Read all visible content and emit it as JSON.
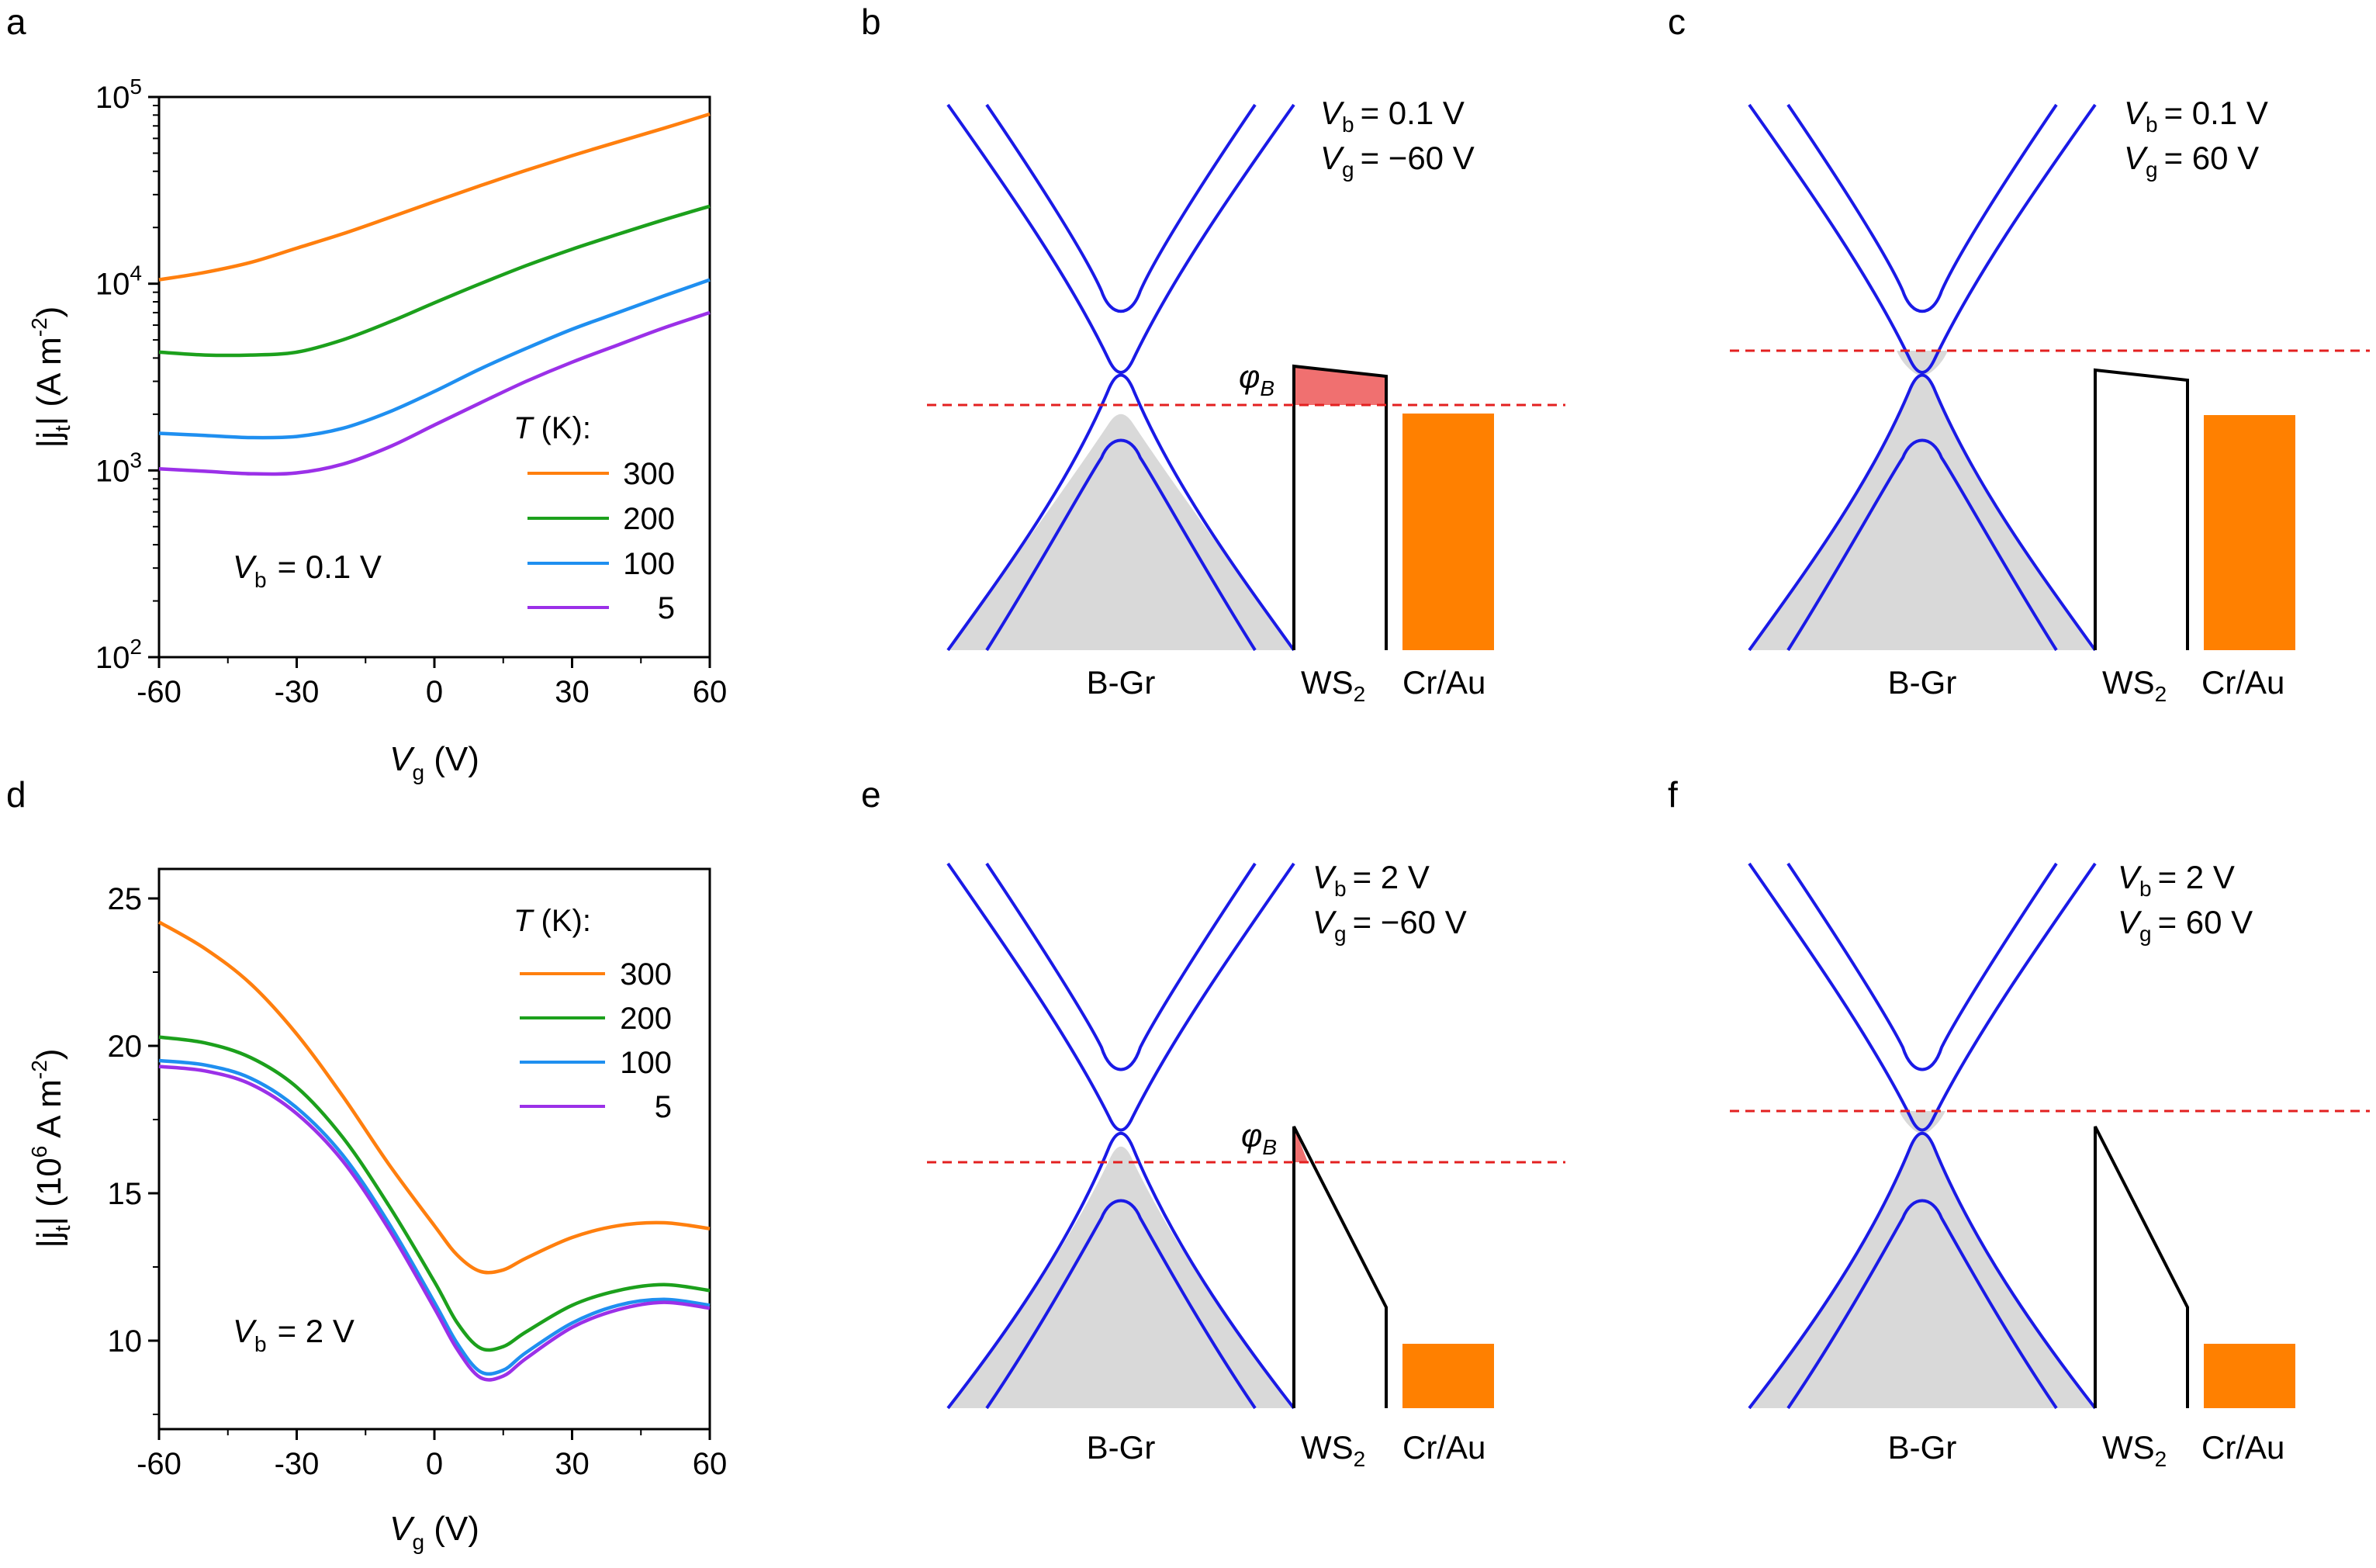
{
  "colors": {
    "T300": "#ff7f0e",
    "T200": "#1ca01c",
    "T100": "#1f8ff0",
    "T5": "#9b30e8",
    "band": "#1a1ae6",
    "fermi": "#e32020",
    "barrier_fill": "#f07070",
    "metal": "#ff8000",
    "filled": "#d9d9d9"
  },
  "panels": {
    "a": {
      "label": "a"
    },
    "b": {
      "label": "b",
      "vb_label": "V",
      "vb_sub": "b",
      "vb_value": "=  0.1 V",
      "vg_label": "V",
      "vg_sub": "g",
      "vg_value": "= −60 V",
      "phi": "φ",
      "phi_sub": "B",
      "gr": "B-Gr",
      "ws": "WS",
      "ws_sub": "2",
      "metal": "Cr/Au"
    },
    "c": {
      "label": "c",
      "vb_label": "V",
      "vb_sub": "b",
      "vb_value": "= 0.1 V",
      "vg_label": "V",
      "vg_sub": "g",
      "vg_value": "=  60 V",
      "gr": "B-Gr",
      "ws": "WS",
      "ws_sub": "2",
      "metal": "Cr/Au"
    },
    "d": {
      "label": "d"
    },
    "e": {
      "label": "e",
      "vb_label": "V",
      "vb_sub": "b",
      "vb_value": "=     2 V",
      "vg_label": "V",
      "vg_sub": "g",
      "vg_value": "= −60 V",
      "phi": "φ",
      "phi_sub": "B",
      "gr": "B-Gr",
      "ws": "WS",
      "ws_sub": "2",
      "metal": "Cr/Au"
    },
    "f": {
      "label": "f",
      "vb_label": "V",
      "vb_sub": "b",
      "vb_value": "=    2 V",
      "vg_label": "V",
      "vg_sub": "g",
      "vg_value": "= 60 V",
      "gr": "B-Gr",
      "ws": "WS",
      "ws_sub": "2",
      "metal": "Cr/Au"
    }
  },
  "chart_data": [
    {
      "panel": "a",
      "type": "line",
      "yscale": "log",
      "xlabel": "V",
      "xlabel_sub": "g",
      "xlabel_unit": " (V)",
      "ylabel": "|j",
      "ylabel_sub": "t",
      "ylabel_unit": "| (A m",
      "ylabel_sup": "-2",
      "ylabel_close": ")",
      "xlim": [
        -60,
        60
      ],
      "ylim": [
        100,
        100000
      ],
      "xticks": [
        "-60",
        "-30",
        "0",
        "30",
        "60"
      ],
      "yticks": [
        {
          "base": "10",
          "exp": "2"
        },
        {
          "base": "10",
          "exp": "3"
        },
        {
          "base": "10",
          "exp": "4"
        },
        {
          "base": "10",
          "exp": "5"
        }
      ],
      "legend_title": "T",
      "legend_unit": " (K):",
      "annotation": {
        "v": "V",
        "sub": "b",
        "text": "= 0.1 V"
      },
      "x": [
        -60,
        -50,
        -40,
        -30,
        -20,
        -10,
        0,
        10,
        20,
        30,
        40,
        50,
        60
      ],
      "series": [
        {
          "name": "300",
          "color": "#ff7f0e",
          "values": [
            10500,
            11500,
            13000,
            15500,
            18500,
            22500,
            27500,
            33500,
            40500,
            48500,
            57500,
            68000,
            81000
          ]
        },
        {
          "name": "200",
          "color": "#1ca01c",
          "values": [
            4300,
            4150,
            4150,
            4300,
            5000,
            6200,
            7900,
            10000,
            12500,
            15300,
            18400,
            22000,
            26000
          ]
        },
        {
          "name": "100",
          "color": "#1f8ff0",
          "values": [
            1580,
            1540,
            1500,
            1520,
            1680,
            2050,
            2650,
            3500,
            4500,
            5700,
            7000,
            8600,
            10500
          ]
        },
        {
          "name": "5",
          "color": "#9b30e8",
          "values": [
            1020,
            990,
            960,
            970,
            1080,
            1330,
            1750,
            2300,
            3000,
            3800,
            4700,
            5800,
            7000
          ]
        }
      ]
    },
    {
      "panel": "d",
      "type": "line",
      "yscale": "linear",
      "xlabel": "V",
      "xlabel_sub": "g",
      "xlabel_unit": " (V)",
      "ylabel": "|j",
      "ylabel_sub": "t",
      "ylabel_unit": "| (10",
      "ylabel_sup": "6",
      "ylabel_close": " A m",
      "ylabel_sup2": "-2",
      "ylabel_end": ")",
      "xlim": [
        -60,
        60
      ],
      "ylim": [
        7,
        26
      ],
      "xticks": [
        "-60",
        "-30",
        "0",
        "30",
        "60"
      ],
      "yticks": [
        "10",
        "15",
        "20",
        "25"
      ],
      "legend_title": "T",
      "legend_unit": " (K):",
      "annotation": {
        "v": "V",
        "sub": "b",
        "text": "= 2 V"
      },
      "x": [
        -60,
        -50,
        -40,
        -30,
        -20,
        -10,
        0,
        5,
        10,
        15,
        20,
        30,
        40,
        50,
        60
      ],
      "series": [
        {
          "name": "300",
          "color": "#ff7f0e",
          "values": [
            24.2,
            23.3,
            22.1,
            20.4,
            18.3,
            16.0,
            13.9,
            12.9,
            12.35,
            12.4,
            12.8,
            13.5,
            13.9,
            14.0,
            13.8
          ]
        },
        {
          "name": "200",
          "color": "#1ca01c",
          "values": [
            20.3,
            20.1,
            19.6,
            18.6,
            16.9,
            14.6,
            12.0,
            10.6,
            9.75,
            9.8,
            10.3,
            11.2,
            11.7,
            11.9,
            11.7
          ]
        },
        {
          "name": "100",
          "color": "#1f8ff0",
          "values": [
            19.5,
            19.35,
            18.9,
            17.9,
            16.3,
            14.0,
            11.3,
            9.9,
            8.95,
            9.0,
            9.6,
            10.6,
            11.2,
            11.4,
            11.2
          ]
        },
        {
          "name": "5",
          "color": "#9b30e8",
          "values": [
            19.3,
            19.15,
            18.7,
            17.7,
            16.1,
            13.8,
            11.1,
            9.7,
            8.75,
            8.8,
            9.4,
            10.45,
            11.05,
            11.3,
            11.1
          ]
        }
      ]
    }
  ]
}
